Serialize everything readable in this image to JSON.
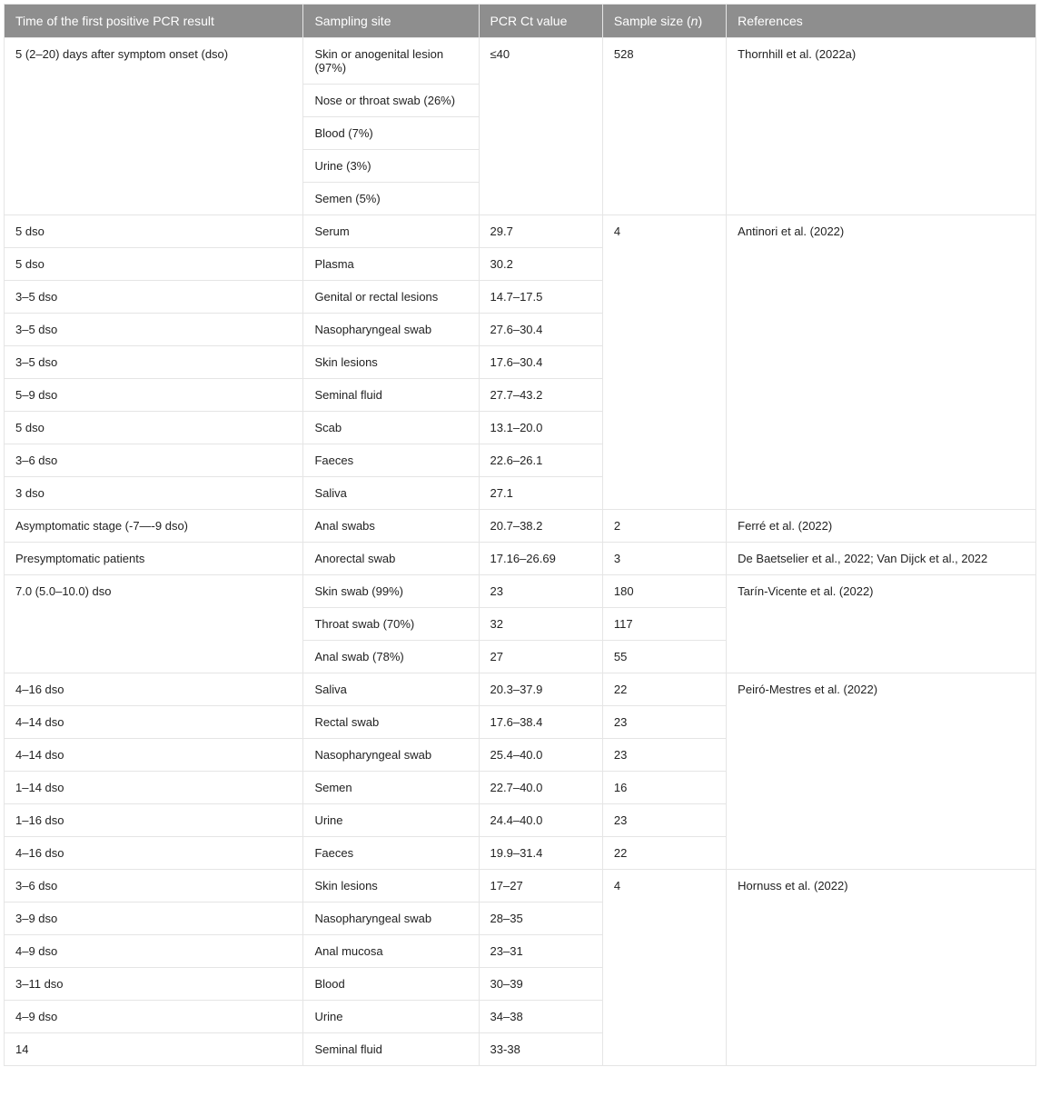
{
  "headers": {
    "time": "Time of the first positive PCR result",
    "site": "Sampling site",
    "ct": "PCR Ct value",
    "size_prefix": "Sample size (",
    "size_var": "n",
    "size_suffix": ")",
    "ref": "References"
  },
  "rows": [
    {
      "time": "5 (2–20) days after symptom onset (dso)",
      "site": "Skin or anogenital lesion (97%)",
      "ct": "≤40",
      "size": "528",
      "ref": "Thornhill et al. (2022a)",
      "time_rowspan": 5,
      "ct_rowspan": 5,
      "size_rowspan": 5,
      "ref_rowspan": 5
    },
    {
      "site": "Nose or throat swab (26%)"
    },
    {
      "site": "Blood (7%)"
    },
    {
      "site": "Urine (3%)"
    },
    {
      "site": "Semen (5%)"
    },
    {
      "time": "5 dso",
      "site": "Serum",
      "ct": "29.7",
      "size": "4",
      "ref": "Antinori et al. (2022)",
      "size_rowspan": 9,
      "ref_rowspan": 9
    },
    {
      "time": "5 dso",
      "site": "Plasma",
      "ct": "30.2"
    },
    {
      "time": "3–5 dso",
      "site": "Genital or rectal lesions",
      "ct": "14.7–17.5"
    },
    {
      "time": "3–5 dso",
      "site": "Nasopharyngeal swab",
      "ct": "27.6–30.4"
    },
    {
      "time": "3–5 dso",
      "site": "Skin lesions",
      "ct": "17.6–30.4"
    },
    {
      "time": "5–9 dso",
      "site": "Seminal fluid",
      "ct": "27.7–43.2"
    },
    {
      "time": "5 dso",
      "site": "Scab",
      "ct": "13.1–20.0"
    },
    {
      "time": "3–6 dso",
      "site": "Faeces",
      "ct": "22.6–26.1"
    },
    {
      "time": "3 dso",
      "site": "Saliva",
      "ct": "27.1"
    },
    {
      "time": "Asymptomatic stage (-7—-9 dso)",
      "site": "Anal swabs",
      "ct": "20.7–38.2",
      "size": "2",
      "ref": "Ferré et al. (2022)"
    },
    {
      "time": "Presymptomatic patients",
      "site": "Anorectal swab",
      "ct": "17.16–26.69",
      "size": "3",
      "ref": "De Baetselier et al., 2022; Van Dijck et al., 2022"
    },
    {
      "time": "7.0 (5.0–10.0) dso",
      "site": "Skin swab (99%)",
      "ct": "23",
      "size": "180",
      "ref": "Tarín-Vicente et al. (2022)",
      "time_rowspan": 3,
      "ref_rowspan": 3
    },
    {
      "site": "Throat swab (70%)",
      "ct": "32",
      "size": "117"
    },
    {
      "site": "Anal swab (78%)",
      "ct": "27",
      "size": "55"
    },
    {
      "time": "4–16 dso",
      "site": "Saliva",
      "ct": "20.3–37.9",
      "size": "22",
      "ref": "Peiró-Mestres et al. (2022)",
      "ref_rowspan": 6
    },
    {
      "time": "4–14 dso",
      "site": "Rectal swab",
      "ct": "17.6–38.4",
      "size": "23"
    },
    {
      "time": "4–14 dso",
      "site": "Nasopharyngeal swab",
      "ct": "25.4–40.0",
      "size": "23"
    },
    {
      "time": "1–14 dso",
      "site": "Semen",
      "ct": "22.7–40.0",
      "size": "16"
    },
    {
      "time": "1–16 dso",
      "site": "Urine",
      "ct": "24.4–40.0",
      "size": "23"
    },
    {
      "time": "4–16 dso",
      "site": "Faeces",
      "ct": "19.9–31.4",
      "size": "22"
    },
    {
      "time": "3–6 dso",
      "site": "Skin lesions",
      "ct": "17–27",
      "size": "4",
      "ref": "Hornuss et al. (2022)",
      "size_rowspan": 6,
      "ref_rowspan": 6
    },
    {
      "time": "3–9 dso",
      "site": "Nasopharyngeal swab",
      "ct": "28–35"
    },
    {
      "time": "4–9 dso",
      "site": "Anal mucosa",
      "ct": "23–31"
    },
    {
      "time": "3–11 dso",
      "site": "Blood",
      "ct": "30–39"
    },
    {
      "time": "4–9 dso",
      "site": "Urine",
      "ct": "34–38"
    },
    {
      "time": "14",
      "site": "Seminal fluid",
      "ct": "33-38"
    }
  ]
}
